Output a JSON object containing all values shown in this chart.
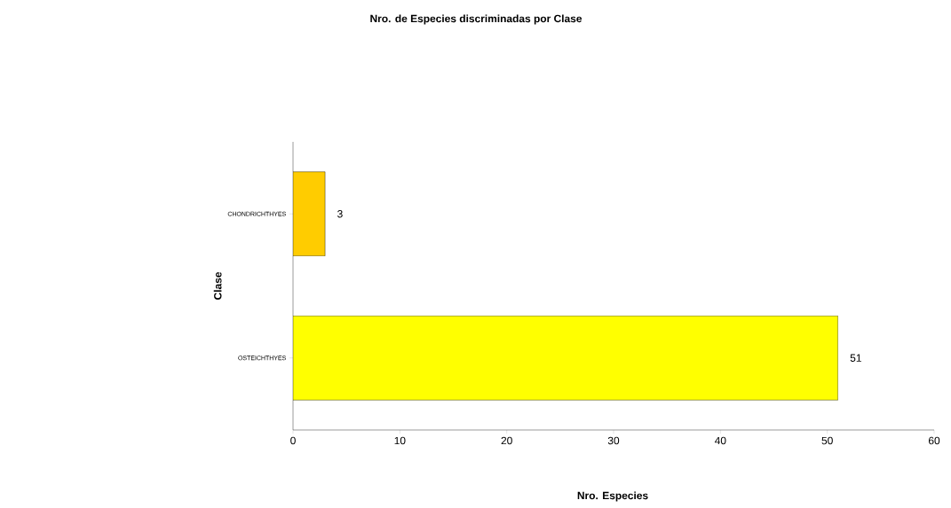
{
  "chart_data": {
    "type": "bar",
    "orientation": "horizontal",
    "title": "Nro. de Especies discriminadas por Clase",
    "xlabel": "Nro. Especies",
    "ylabel": "Clase",
    "categories": [
      "CHONDRICHTHYES",
      "OSTEICHTHYES"
    ],
    "values": [
      3,
      51
    ],
    "colors": [
      "#ffcc00",
      "#ffff00"
    ],
    "xlim": [
      0,
      60
    ],
    "xticks": [
      0,
      10,
      20,
      30,
      40,
      50,
      60
    ],
    "data_labels": true
  }
}
